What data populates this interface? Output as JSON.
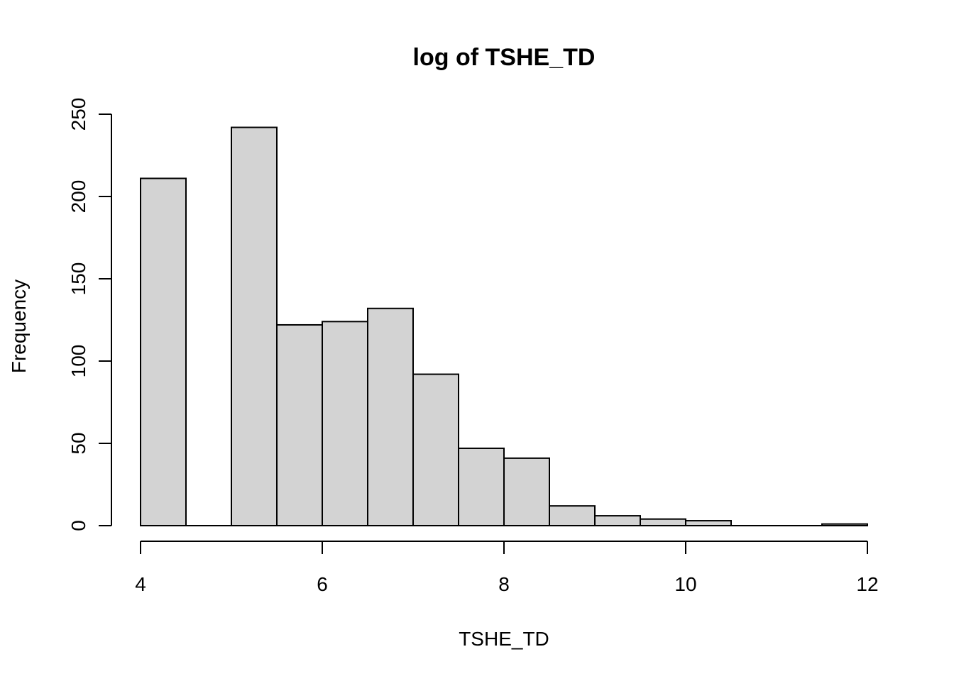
{
  "chart_data": {
    "type": "bar",
    "title": "log of TSHE_TD",
    "xlabel": "TSHE_TD",
    "ylabel": "Frequency",
    "bins": [
      {
        "x0": 4.0,
        "x1": 4.5,
        "count": 211
      },
      {
        "x0": 4.5,
        "x1": 5.0,
        "count": 0
      },
      {
        "x0": 5.0,
        "x1": 5.5,
        "count": 242
      },
      {
        "x0": 5.5,
        "x1": 6.0,
        "count": 122
      },
      {
        "x0": 6.0,
        "x1": 6.5,
        "count": 124
      },
      {
        "x0": 6.5,
        "x1": 7.0,
        "count": 132
      },
      {
        "x0": 7.0,
        "x1": 7.5,
        "count": 92
      },
      {
        "x0": 7.5,
        "x1": 8.0,
        "count": 47
      },
      {
        "x0": 8.0,
        "x1": 8.5,
        "count": 41
      },
      {
        "x0": 8.5,
        "x1": 9.0,
        "count": 12
      },
      {
        "x0": 9.0,
        "x1": 9.5,
        "count": 6
      },
      {
        "x0": 9.5,
        "x1": 10.0,
        "count": 4
      },
      {
        "x0": 10.0,
        "x1": 10.5,
        "count": 3
      },
      {
        "x0": 10.5,
        "x1": 11.0,
        "count": 0
      },
      {
        "x0": 11.0,
        "x1": 11.5,
        "count": 0
      },
      {
        "x0": 11.5,
        "x1": 12.0,
        "count": 1
      }
    ],
    "xlim": [
      4,
      12
    ],
    "ylim": [
      0,
      250
    ],
    "xticks": [
      4,
      6,
      8,
      10,
      12
    ],
    "yticks": [
      0,
      50,
      100,
      150,
      200,
      250
    ],
    "bar_color": "#d3d3d3",
    "bar_border_color": "#000000",
    "grid": false,
    "legend": "none"
  }
}
